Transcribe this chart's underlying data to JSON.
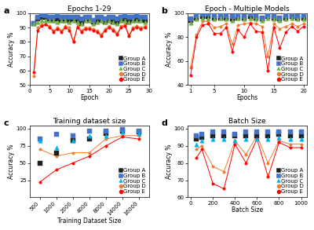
{
  "panel_a": {
    "title": "Epochs 1-29",
    "xlabel": "Epoch",
    "ylabel": "Accuracy %",
    "xlim": [
      0,
      30
    ],
    "ylim": [
      50,
      100
    ],
    "xticks": [
      0,
      5,
      10,
      15,
      20,
      25,
      30
    ],
    "yticks": [
      50,
      60,
      70,
      80,
      90,
      100
    ],
    "groups": {
      "Group A": {
        "color": "#1f1f1f",
        "marker": "s",
        "connected": false,
        "x": [
          1,
          2,
          3,
          4,
          5,
          6,
          7,
          8,
          9,
          10,
          11,
          12,
          13,
          14,
          15,
          16,
          17,
          18,
          19,
          20,
          21,
          22,
          23,
          24,
          25,
          26,
          27,
          28,
          29
        ],
        "y": [
          93,
          96,
          97,
          97,
          96,
          95,
          96,
          95,
          95,
          95,
          96,
          95,
          93,
          95,
          95,
          94,
          95,
          95,
          94,
          95,
          94,
          94,
          95,
          96,
          94,
          95,
          96,
          95,
          95
        ]
      },
      "Group B": {
        "color": "#4472c4",
        "marker": "s",
        "connected": false,
        "x": [
          1,
          2,
          3,
          4,
          5,
          6,
          7,
          8,
          9,
          10,
          11,
          12,
          13,
          14,
          15,
          16,
          17,
          18,
          19,
          20,
          21,
          22,
          23,
          24,
          25,
          26,
          27,
          28,
          29
        ],
        "y": [
          93,
          97,
          99,
          98,
          97,
          97,
          98,
          97,
          97,
          97,
          97,
          97,
          96,
          97,
          97,
          95,
          97,
          97,
          96,
          97,
          97,
          96,
          97,
          98,
          97,
          97,
          98,
          97,
          97
        ]
      },
      "Group C": {
        "color": "#70ad47",
        "marker": "^",
        "connected": false,
        "x": [
          1,
          2,
          3,
          4,
          5,
          6,
          7,
          8,
          9,
          10,
          11,
          12,
          13,
          14,
          15,
          16,
          17,
          18,
          19,
          20,
          21,
          22,
          23,
          24,
          25,
          26,
          27,
          28,
          29
        ],
        "y": [
          93,
          94,
          95,
          95,
          95,
          95,
          94,
          95,
          95,
          94,
          95,
          94,
          93,
          95,
          95,
          93,
          94,
          95,
          94,
          95,
          94,
          93,
          95,
          95,
          94,
          95,
          95,
          95,
          94
        ]
      },
      "Group D": {
        "color": "#ed7d31",
        "marker": "o",
        "connected": true,
        "x": [
          1,
          2,
          3,
          4,
          5,
          6,
          7,
          8,
          9,
          10,
          11,
          12,
          13,
          14,
          15,
          16,
          17,
          18,
          19,
          20,
          21,
          22,
          23,
          24,
          25,
          26,
          27,
          28,
          29
        ],
        "y": [
          56,
          90,
          92,
          92,
          91,
          88,
          90,
          88,
          91,
          90,
          80,
          91,
          88,
          90,
          90,
          89,
          88,
          85,
          89,
          91,
          89,
          86,
          91,
          92,
          85,
          90,
          91,
          90,
          91
        ]
      },
      "Group E": {
        "color": "#ff0000",
        "marker": "o",
        "connected": true,
        "x": [
          1,
          2,
          3,
          4,
          5,
          6,
          7,
          8,
          9,
          10,
          11,
          12,
          13,
          14,
          15,
          16,
          17,
          18,
          19,
          20,
          21,
          22,
          23,
          24,
          25,
          26,
          27,
          28,
          29
        ],
        "y": [
          59,
          88,
          91,
          92,
          90,
          87,
          89,
          87,
          90,
          88,
          80,
          90,
          87,
          89,
          89,
          88,
          87,
          84,
          88,
          90,
          88,
          85,
          90,
          91,
          84,
          89,
          90,
          89,
          90
        ]
      }
    }
  },
  "panel_b": {
    "title": "Epoch - Multiple Models",
    "xlabel": "Epochs",
    "ylabel": "Accuracy %",
    "xlim": [
      0.5,
      20.5
    ],
    "ylim": [
      40,
      100
    ],
    "xticks": [
      1,
      5,
      10,
      15,
      20
    ],
    "yticks": [
      40,
      60,
      80,
      100
    ],
    "groups": {
      "Group A": {
        "color": "#1f1f1f",
        "marker": "s",
        "connected": false,
        "x": [
          1,
          2,
          3,
          4,
          5,
          6,
          7,
          8,
          9,
          10,
          11,
          12,
          13,
          14,
          15,
          16,
          17,
          18,
          19,
          20
        ],
        "y": [
          94,
          96,
          97,
          97,
          96,
          96,
          96,
          95,
          96,
          96,
          97,
          96,
          95,
          97,
          96,
          95,
          96,
          97,
          96,
          96
        ]
      },
      "Group B": {
        "color": "#4472c4",
        "marker": "s",
        "connected": false,
        "x": [
          1,
          2,
          3,
          4,
          5,
          6,
          7,
          8,
          9,
          10,
          11,
          12,
          13,
          14,
          15,
          16,
          17,
          18,
          19,
          20
        ],
        "y": [
          95,
          98,
          99,
          99,
          98,
          98,
          98,
          97,
          98,
          97,
          99,
          97,
          96,
          98,
          97,
          96,
          98,
          98,
          97,
          98
        ]
      },
      "Group C": {
        "color": "#70ad47",
        "marker": "^",
        "connected": false,
        "x": [
          1,
          2,
          3,
          4,
          5,
          6,
          7,
          8,
          9,
          10,
          11,
          12,
          13,
          14,
          15,
          16,
          17,
          18,
          19,
          20
        ],
        "y": [
          92,
          95,
          96,
          96,
          95,
          96,
          95,
          94,
          96,
          95,
          96,
          95,
          94,
          96,
          95,
          94,
          95,
          96,
          95,
          95
        ]
      },
      "Group D": {
        "color": "#ed7d31",
        "marker": "o",
        "connected": true,
        "x": [
          1,
          2,
          3,
          4,
          5,
          6,
          7,
          8,
          9,
          10,
          11,
          12,
          13,
          14,
          15,
          16,
          17,
          18,
          19,
          20
        ],
        "y": [
          55,
          82,
          93,
          93,
          88,
          89,
          91,
          74,
          90,
          91,
          92,
          91,
          89,
          64,
          91,
          87,
          89,
          91,
          89,
          91
        ]
      },
      "Group E": {
        "color": "#ff0000",
        "marker": "o",
        "connected": true,
        "x": [
          1,
          2,
          3,
          4,
          5,
          6,
          7,
          8,
          9,
          10,
          11,
          12,
          13,
          14,
          15,
          16,
          17,
          18,
          19,
          20
        ],
        "y": [
          48,
          80,
          90,
          91,
          83,
          83,
          88,
          68,
          86,
          80,
          91,
          85,
          84,
          52,
          88,
          71,
          84,
          89,
          85,
          89
        ]
      }
    }
  },
  "panel_c": {
    "title": "Training dataset size",
    "xlabel": "Training Dataset Size",
    "ylabel": "Accuracy %",
    "xvals": [
      500,
      1000,
      2000,
      4000,
      8000,
      14000,
      16000
    ],
    "xlabels": [
      "500",
      "1000",
      "2000",
      "4000",
      "8000",
      "14000",
      "16000"
    ],
    "ylim": [
      0,
      105
    ],
    "yticks": [
      25,
      50,
      75,
      100
    ],
    "groups": {
      "Group A": {
        "color": "#1f1f1f",
        "marker": "s",
        "connected": false,
        "xi": [
          0,
          1,
          2,
          3,
          4,
          5,
          6
        ],
        "y": [
          50,
          65,
          83,
          85,
          93,
          97,
          95
        ]
      },
      "Group B": {
        "color": "#4472c4",
        "marker": "s",
        "connected": false,
        "xi": [
          0,
          1,
          2,
          3,
          4,
          5,
          6
        ],
        "y": [
          85,
          92,
          90,
          97,
          97,
          99,
          97
        ]
      },
      "Group C": {
        "color": "#00b0f0",
        "marker": "^",
        "connected": false,
        "xi": [
          0,
          1,
          2,
          3,
          4,
          5,
          6
        ],
        "y": [
          83,
          72,
          83,
          90,
          90,
          95,
          93
        ]
      },
      "Group D": {
        "color": "#ed7d31",
        "marker": "o",
        "connected": true,
        "xi": [
          0,
          1,
          2,
          3,
          4,
          5,
          6
        ],
        "y": [
          70,
          60,
          65,
          65,
          85,
          90,
          90
        ]
      },
      "Group E": {
        "color": "#ff0000",
        "marker": "o",
        "connected": true,
        "xi": [
          0,
          1,
          2,
          3,
          4,
          5,
          6
        ],
        "y": [
          22,
          40,
          50,
          60,
          75,
          88,
          85
        ]
      }
    }
  },
  "panel_d": {
    "title": "Batch Size",
    "xlabel": "Batch Size",
    "ylabel": "Accuracy %",
    "xlim": [
      -30,
      1050
    ],
    "ylim": [
      60,
      102
    ],
    "xticks": [
      0,
      200,
      400,
      600,
      800,
      1000
    ],
    "yticks": [
      60,
      70,
      80,
      90,
      100
    ],
    "groups": {
      "Group A": {
        "color": "#1f1f1f",
        "marker": "s",
        "connected": false,
        "x": [
          50,
          100,
          200,
          300,
          400,
          500,
          600,
          700,
          800,
          900,
          1000
        ],
        "y": [
          94,
          95,
          96,
          96,
          96,
          96,
          96,
          96,
          97,
          96,
          96
        ]
      },
      "Group B": {
        "color": "#4472c4",
        "marker": "s",
        "connected": false,
        "x": [
          50,
          100,
          200,
          300,
          400,
          500,
          600,
          700,
          800,
          900,
          1000
        ],
        "y": [
          96,
          97,
          98,
          98,
          97,
          98,
          98,
          98,
          98,
          98,
          98
        ]
      },
      "Group C": {
        "color": "#00b0f0",
        "marker": "^",
        "connected": false,
        "x": [
          50,
          100,
          200,
          300,
          400,
          500,
          600,
          700,
          800,
          900,
          1000
        ],
        "y": [
          91,
          93,
          94,
          94,
          93,
          94,
          94,
          94,
          95,
          94,
          94
        ]
      },
      "Group D": {
        "color": "#ed7d31",
        "marker": "o",
        "connected": true,
        "x": [
          50,
          100,
          200,
          300,
          400,
          500,
          600,
          700,
          800,
          900,
          1000
        ],
        "y": [
          88,
          90,
          78,
          75,
          93,
          85,
          96,
          80,
          93,
          91,
          91
        ]
      },
      "Group E": {
        "color": "#ff0000",
        "marker": "o",
        "connected": true,
        "x": [
          50,
          100,
          200,
          300,
          400,
          500,
          600,
          700,
          800,
          900,
          1000
        ],
        "y": [
          83,
          88,
          68,
          65,
          91,
          80,
          94,
          72,
          92,
          89,
          89
        ]
      }
    }
  },
  "label_fontsize": 5.5,
  "title_fontsize": 6.5,
  "tick_fontsize": 5,
  "legend_fontsize": 5,
  "marker_size": 2.5,
  "line_width": 0.7,
  "background_color": "#ffffff"
}
